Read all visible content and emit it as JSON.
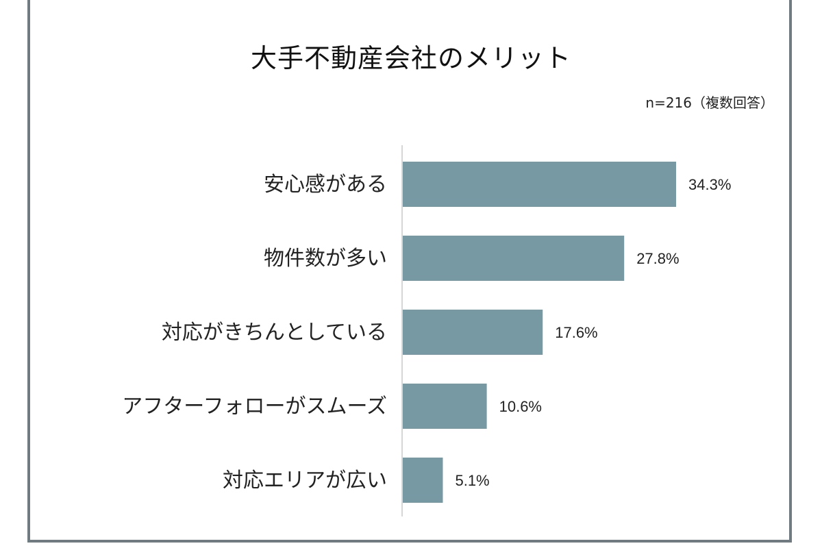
{
  "chart_data": {
    "type": "bar",
    "orientation": "horizontal",
    "title": "大手不動産会社のメリット",
    "note": "n=216（複数回答）",
    "categories": [
      "安心感がある",
      "物件数が多い",
      "対応がきちんとしている",
      "アフターフォローがスムーズ",
      "対応エリアが広い"
    ],
    "values": [
      34.3,
      27.8,
      17.6,
      10.6,
      5.1
    ],
    "value_labels": [
      "34.3%",
      "27.8%",
      "17.6%",
      "10.6%",
      "5.1%"
    ],
    "unit": "%",
    "xlim": [
      0,
      40
    ],
    "grid": false,
    "legend": "none",
    "bar_color": "#7799a3"
  }
}
